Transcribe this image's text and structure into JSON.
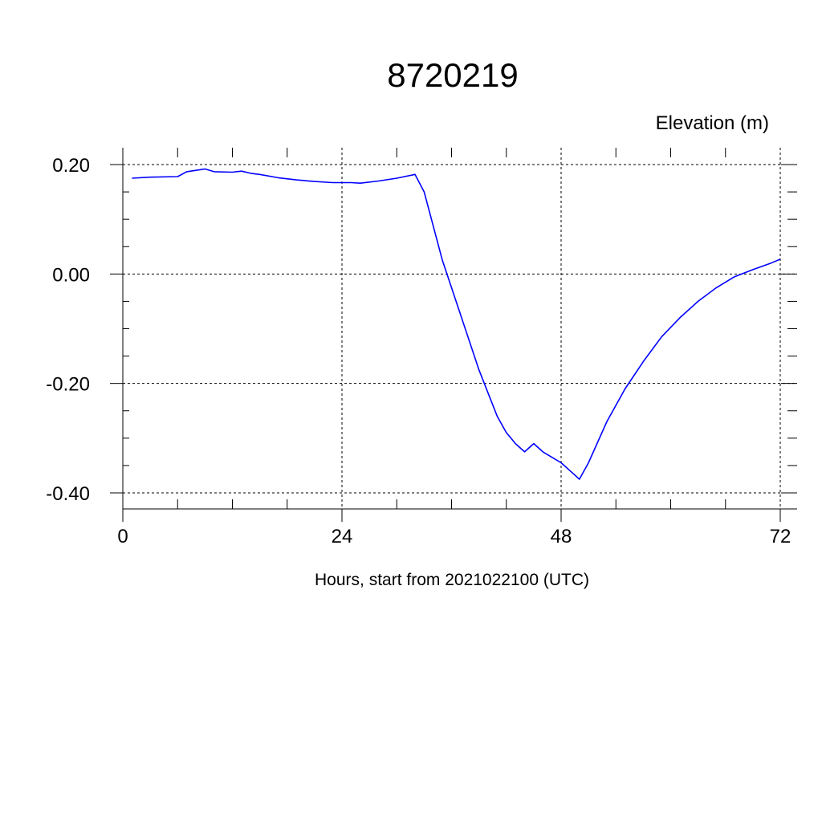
{
  "chart_data": {
    "type": "line",
    "title": "8720219",
    "ylabel": "Elevation (m)",
    "xlabel": "Hours, start from 2021022100 (UTC)",
    "xlim": [
      0,
      72
    ],
    "ylim": [
      -0.4,
      0.2
    ],
    "x_ticks": [
      0,
      24,
      48,
      72
    ],
    "x_tick_labels": [
      "0",
      "24",
      "48",
      "72"
    ],
    "y_ticks": [
      -0.4,
      -0.2,
      0.0,
      0.2
    ],
    "y_tick_labels": [
      "-0.40",
      "-0.20",
      "0.00",
      "0.20"
    ],
    "grid": true,
    "grid_style": "dashed",
    "line_color": "#0000ff",
    "series": [
      {
        "x": [
          1,
          3,
          6,
          7,
          9,
          10,
          12,
          13,
          14,
          15,
          17,
          19,
          21,
          23,
          25,
          26,
          28,
          30,
          32,
          33,
          35,
          37,
          39,
          41,
          42,
          43,
          44,
          45,
          46,
          47,
          48,
          49,
          50,
          51,
          53,
          55,
          57,
          59,
          61,
          63,
          65,
          67,
          69,
          71,
          72
        ],
        "y": [
          0.175,
          0.177,
          0.178,
          0.187,
          0.192,
          0.187,
          0.186,
          0.188,
          0.184,
          0.182,
          0.176,
          0.172,
          0.169,
          0.167,
          0.167,
          0.166,
          0.17,
          0.175,
          0.182,
          0.15,
          0.025,
          -0.075,
          -0.175,
          -0.26,
          -0.29,
          -0.31,
          -0.325,
          -0.31,
          -0.325,
          -0.335,
          -0.345,
          -0.36,
          -0.375,
          -0.345,
          -0.27,
          -0.21,
          -0.16,
          -0.115,
          -0.08,
          -0.05,
          -0.025,
          -0.005,
          0.008,
          0.02,
          0.027
        ]
      }
    ]
  }
}
